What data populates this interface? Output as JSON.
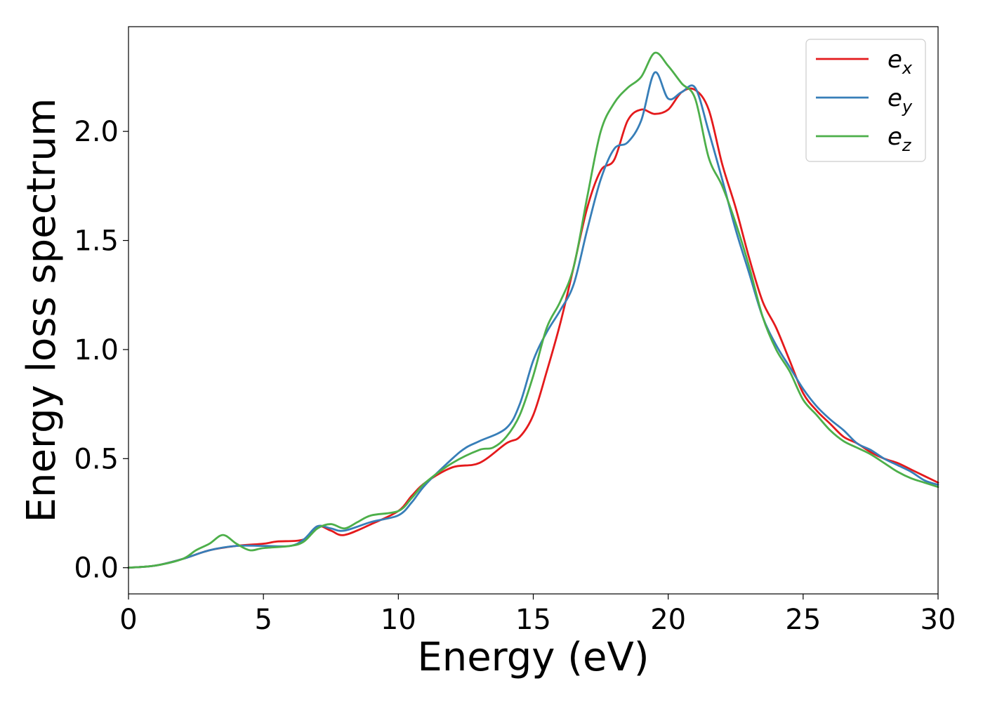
{
  "chart_data": {
    "type": "line",
    "title": "",
    "xlabel": "Energy (eV)",
    "ylabel": "Energy loss spectrum",
    "xlim": [
      0,
      30
    ],
    "ylim": [
      -0.12,
      2.48
    ],
    "x_ticks": [
      0,
      5,
      10,
      15,
      20,
      25,
      30
    ],
    "x_tick_labels": [
      "0",
      "5",
      "10",
      "15",
      "20",
      "25",
      "30"
    ],
    "y_ticks": [
      0.0,
      0.5,
      1.0,
      1.5,
      2.0
    ],
    "y_tick_labels": [
      "0.0",
      "0.5",
      "1.0",
      "1.5",
      "2.0"
    ],
    "grid": false,
    "legend_position": "top-right",
    "series": [
      {
        "name": "e_x",
        "legend_base": "e",
        "legend_sub": "x",
        "color": "#e41a1c",
        "x": [
          0,
          1,
          2,
          3,
          4,
          5,
          5.5,
          6.5,
          7,
          7.5,
          8,
          9,
          10,
          10.5,
          11,
          12,
          13,
          14,
          14.5,
          15,
          15.5,
          16,
          16.5,
          17,
          17.5,
          18,
          18.5,
          19,
          19.5,
          20,
          20.5,
          21,
          21.5,
          22,
          22.5,
          23,
          23.5,
          24,
          24.5,
          25,
          25.5,
          26,
          26.5,
          27,
          27.5,
          28,
          28.5,
          29,
          29.5,
          30
        ],
        "y": [
          0.0,
          0.01,
          0.04,
          0.08,
          0.1,
          0.11,
          0.12,
          0.13,
          0.19,
          0.17,
          0.15,
          0.2,
          0.26,
          0.33,
          0.39,
          0.46,
          0.48,
          0.57,
          0.6,
          0.7,
          0.9,
          1.12,
          1.38,
          1.65,
          1.82,
          1.87,
          2.05,
          2.1,
          2.08,
          2.1,
          2.18,
          2.19,
          2.1,
          1.85,
          1.65,
          1.42,
          1.22,
          1.1,
          0.95,
          0.8,
          0.72,
          0.66,
          0.6,
          0.57,
          0.53,
          0.5,
          0.48,
          0.45,
          0.42,
          0.39
        ]
      },
      {
        "name": "e_y",
        "legend_base": "e",
        "legend_sub": "y",
        "color": "#377eb8",
        "x": [
          0,
          1,
          2,
          3,
          4,
          5,
          6,
          6.5,
          7,
          7.5,
          8,
          9,
          10,
          10.5,
          11,
          12,
          12.5,
          13,
          14,
          14.5,
          15,
          15.5,
          16,
          16.5,
          17,
          17.5,
          18,
          18.5,
          19,
          19.5,
          20,
          20.5,
          21,
          21.5,
          22,
          22.5,
          23,
          23.5,
          24,
          24.5,
          25,
          25.5,
          26,
          26.5,
          27,
          27.5,
          28,
          28.5,
          29,
          29.5,
          30
        ],
        "y": [
          0.0,
          0.01,
          0.04,
          0.08,
          0.1,
          0.1,
          0.1,
          0.13,
          0.19,
          0.18,
          0.17,
          0.21,
          0.24,
          0.3,
          0.38,
          0.5,
          0.55,
          0.58,
          0.64,
          0.75,
          0.95,
          1.08,
          1.18,
          1.3,
          1.55,
          1.78,
          1.92,
          1.95,
          2.05,
          2.27,
          2.15,
          2.18,
          2.2,
          2.0,
          1.78,
          1.55,
          1.35,
          1.15,
          1.02,
          0.92,
          0.82,
          0.74,
          0.68,
          0.63,
          0.57,
          0.54,
          0.5,
          0.47,
          0.44,
          0.4,
          0.38
        ]
      },
      {
        "name": "e_z",
        "legend_base": "e",
        "legend_sub": "z",
        "color": "#4daf4a",
        "x": [
          0,
          1,
          2,
          2.5,
          3,
          3.5,
          4,
          4.5,
          5,
          6,
          6.5,
          7,
          7.5,
          8,
          8.5,
          9,
          10,
          10.5,
          11,
          12,
          13,
          13.5,
          14,
          14.5,
          15,
          15.5,
          16,
          16.5,
          17,
          17.5,
          18,
          18.5,
          19,
          19.5,
          20,
          20.5,
          21,
          21.5,
          22,
          22.5,
          23,
          23.5,
          24,
          24.5,
          25,
          25.5,
          26,
          26.5,
          27,
          27.5,
          28,
          28.5,
          29,
          29.5,
          30
        ],
        "y": [
          0.0,
          0.01,
          0.04,
          0.08,
          0.11,
          0.15,
          0.11,
          0.08,
          0.09,
          0.1,
          0.12,
          0.18,
          0.2,
          0.18,
          0.21,
          0.24,
          0.26,
          0.32,
          0.39,
          0.48,
          0.54,
          0.55,
          0.6,
          0.7,
          0.88,
          1.1,
          1.22,
          1.38,
          1.7,
          2.0,
          2.13,
          2.2,
          2.25,
          2.36,
          2.3,
          2.22,
          2.15,
          1.88,
          1.75,
          1.58,
          1.38,
          1.15,
          1.0,
          0.9,
          0.77,
          0.7,
          0.63,
          0.58,
          0.55,
          0.52,
          0.48,
          0.44,
          0.41,
          0.39,
          0.37
        ]
      }
    ]
  }
}
